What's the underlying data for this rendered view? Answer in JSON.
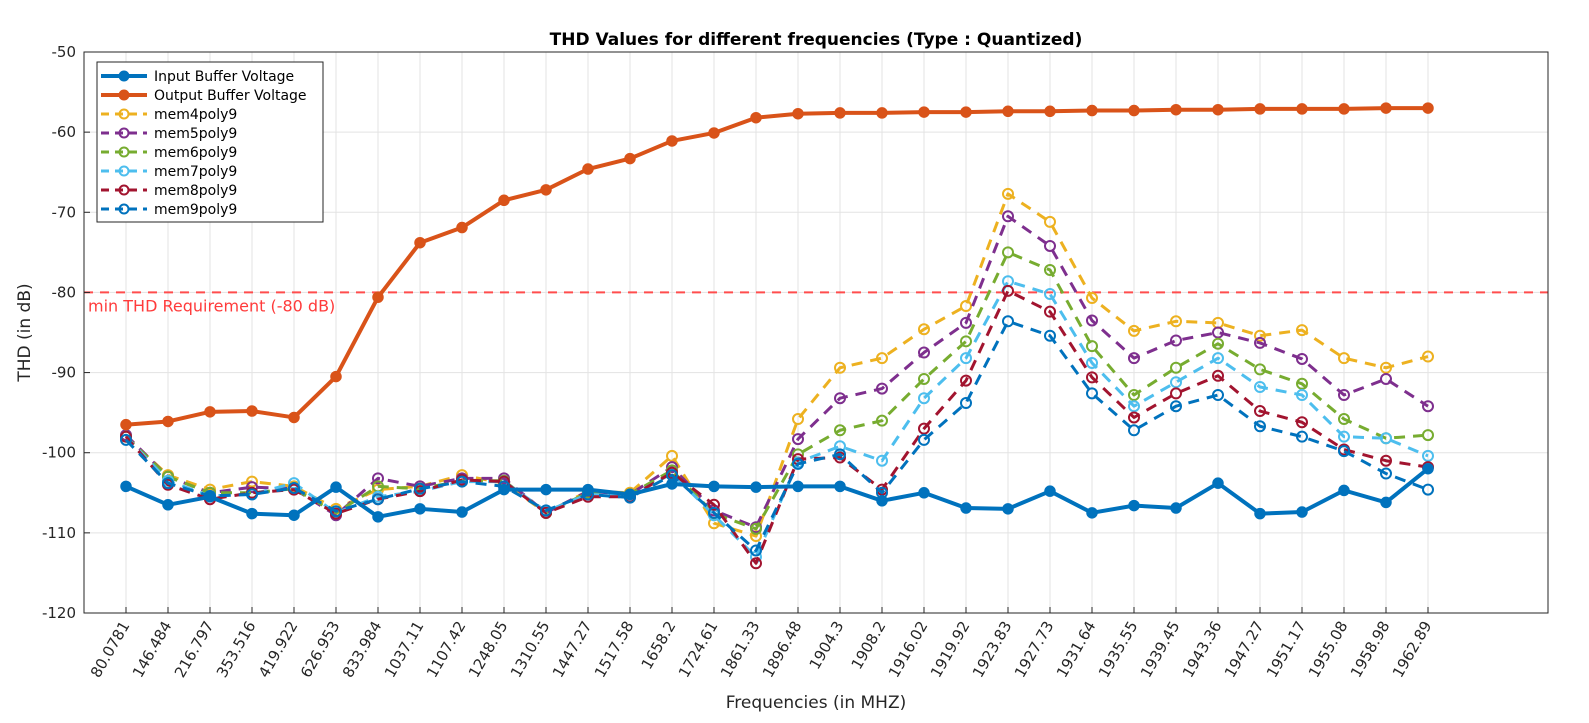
{
  "chart_data": {
    "type": "line",
    "title": "THD Values for different frequencies (Type : Quantized)",
    "xlabel": "Frequencies (in MHZ)",
    "ylabel": "THD (in dB)",
    "ylim": [
      -120,
      -50
    ],
    "yticks": [
      -50,
      -60,
      -70,
      -80,
      -90,
      -100,
      -110,
      -120
    ],
    "ytick_labels": [
      "-50",
      "-60",
      "-70",
      "-80",
      "-90",
      "-100",
      "-110",
      "-120"
    ],
    "grid": true,
    "legend_position": "top-left",
    "categories": [
      "80.0781",
      "146.484",
      "216.797",
      "353.516",
      "419.922",
      "626.953",
      "833.984",
      "1037.11",
      "1107.42",
      "1248.05",
      "1310.55",
      "1447.27",
      "1517.58",
      "1658.2",
      "1724.61",
      "1861.33",
      "1896.48",
      "1904.3",
      "1908.2",
      "1916.02",
      "1919.92",
      "1923.83",
      "1927.73",
      "1931.64",
      "1935.55",
      "1939.45",
      "1943.36",
      "1947.27",
      "1951.17",
      "1955.08",
      "1958.98",
      "1962.89"
    ],
    "reference_line": {
      "value": -80,
      "label": "min THD Requirement (-80 dB)",
      "color": "#ff4d4d"
    },
    "series": [
      {
        "name": "Input Buffer Voltage",
        "color": "#0072BD",
        "style": "solid",
        "marker": "filled",
        "values": [
          -104.2,
          -106.5,
          -105.5,
          -107.6,
          -107.8,
          -104.3,
          -108,
          -107,
          -107.4,
          -104.6,
          -104.6,
          -104.6,
          -105.2,
          -103.9,
          -104.2,
          -104.3,
          -104.2,
          -104.2,
          -106,
          -105,
          -106.9,
          -107,
          -104.8,
          -107.5,
          -106.6,
          -106.9,
          -103.8,
          -107.6,
          -107.4,
          -104.7,
          -106.2,
          -102
        ]
      },
      {
        "name": "Output Buffer Voltage",
        "color": "#D95319",
        "style": "solid",
        "marker": "filled",
        "values": [
          -96.5,
          -96.1,
          -94.9,
          -94.8,
          -95.6,
          -90.5,
          -80.6,
          -73.8,
          -71.9,
          -68.5,
          -67.2,
          -64.6,
          -63.3,
          -61.1,
          -60.1,
          -58.2,
          -57.7,
          -57.6,
          -57.6,
          -57.5,
          -57.5,
          -57.4,
          -57.4,
          -57.3,
          -57.3,
          -57.2,
          -57.2,
          -57.1,
          -57.1,
          -57.1,
          -57,
          -57
        ]
      },
      {
        "name": "mem4poly9",
        "color": "#EDB120",
        "style": "dashed",
        "marker": "open",
        "values": [
          -98,
          -102.8,
          -104.6,
          -103.6,
          -104.2,
          -107,
          -104.6,
          -104.2,
          -102.8,
          -103.8,
          -107.5,
          -104.8,
          -105,
          -100.4,
          -108.8,
          -110.4,
          -95.8,
          -89.4,
          -88.2,
          -84.6,
          -81.7,
          -67.7,
          -71.2,
          -80.7,
          -84.8,
          -83.6,
          -83.8,
          -85.4,
          -84.7,
          -88.2,
          -89.4,
          -88
        ]
      },
      {
        "name": "mem5poly9",
        "color": "#7E2F8E",
        "style": "dashed",
        "marker": "open",
        "values": [
          -97.8,
          -103,
          -105,
          -104.3,
          -104.5,
          -107.8,
          -103.2,
          -104.2,
          -103.2,
          -103.2,
          -107.5,
          -104.8,
          -105.2,
          -101.8,
          -107.2,
          -109.3,
          -98.3,
          -93.2,
          -92,
          -87.5,
          -83.8,
          -70.5,
          -74.2,
          -83.5,
          -88.2,
          -86,
          -85,
          -86.3,
          -88.3,
          -92.8,
          -90.8,
          -94.2
        ]
      },
      {
        "name": "mem6poly9",
        "color": "#77AC30",
        "style": "dashed",
        "marker": "open",
        "values": [
          -98,
          -103,
          -105,
          -105,
          -104.5,
          -107.5,
          -104.2,
          -104.5,
          -103.5,
          -103.5,
          -107.5,
          -105,
          -105.2,
          -102.2,
          -107.6,
          -109.5,
          -100.2,
          -97.2,
          -96,
          -90.8,
          -86.1,
          -75,
          -77.2,
          -86.7,
          -92.8,
          -89.4,
          -86.4,
          -89.6,
          -91.4,
          -95.8,
          -98.2,
          -97.8
        ]
      },
      {
        "name": "mem7poly9",
        "color": "#4DBEEE",
        "style": "dashed",
        "marker": "open",
        "values": [
          -98,
          -103.5,
          -105.4,
          -105.2,
          -103.8,
          -107.5,
          -105.5,
          -104.8,
          -103.6,
          -103.6,
          -107.3,
          -105.2,
          -105.4,
          -102.6,
          -107.8,
          -113,
          -101.2,
          -99.2,
          -101,
          -93.2,
          -88.2,
          -78.6,
          -80.2,
          -88.8,
          -94.2,
          -91.2,
          -88.2,
          -91.8,
          -92.8,
          -98,
          -98.2,
          -100.4
        ]
      },
      {
        "name": "mem8poly9",
        "color": "#A2142F",
        "style": "dashed",
        "marker": "open",
        "values": [
          -98,
          -104,
          -105.8,
          -105,
          -104.6,
          -107.6,
          -105.8,
          -104.8,
          -103.4,
          -103.6,
          -107.5,
          -105.5,
          -105.5,
          -102.5,
          -106.5,
          -113.8,
          -100.8,
          -100.6,
          -104.6,
          -97,
          -91,
          -79.8,
          -82.4,
          -90.6,
          -95.6,
          -92.6,
          -90.4,
          -94.8,
          -96.2,
          -99.6,
          -101,
          -101.8
        ]
      },
      {
        "name": "mem9poly9",
        "color": "#0072BD",
        "style": "dashed",
        "marker": "open",
        "values": [
          -98.4,
          -103.8,
          -105.4,
          -105.2,
          -104.4,
          -107.3,
          -105.8,
          -104.5,
          -103.6,
          -104.2,
          -107.2,
          -105.2,
          -105.6,
          -102.8,
          -107.5,
          -112.2,
          -101.4,
          -100.2,
          -105,
          -98.4,
          -93.8,
          -83.6,
          -85.4,
          -92.6,
          -97.2,
          -94.2,
          -92.8,
          -96.7,
          -98,
          -99.8,
          -102.6,
          -104.6
        ]
      }
    ]
  }
}
